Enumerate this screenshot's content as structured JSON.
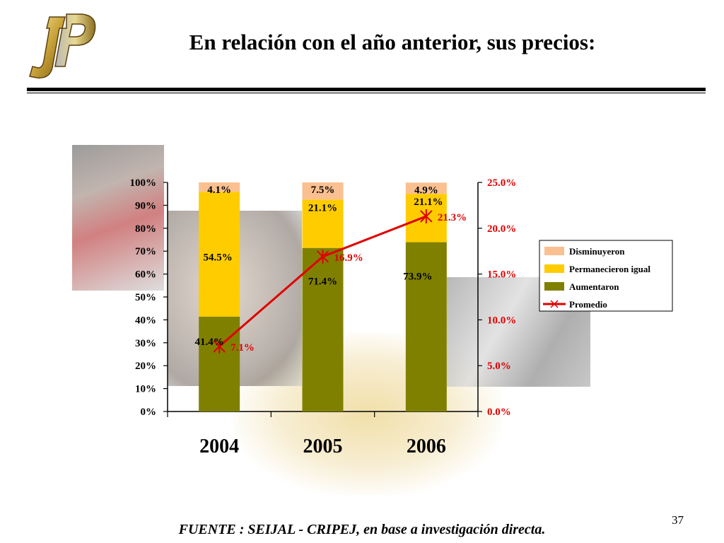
{
  "header": {
    "title": "En relación con el año anterior, sus precios:",
    "logo_icon": "jp-logo-icon"
  },
  "colors": {
    "disminuyeron": "#FAC090",
    "permanecieron": "#FFCC00",
    "aumentaron": "#808000",
    "promedio": "#E00000"
  },
  "chart_data": {
    "type": "bar",
    "stacked": true,
    "categories": [
      "2004",
      "2005",
      "2006"
    ],
    "series": [
      {
        "name": "Aumentaron",
        "values": [
          41.4,
          71.4,
          73.9
        ],
        "labels": [
          "41.4%",
          "71.4%",
          "73.9%"
        ]
      },
      {
        "name": "Permanecieron igual",
        "values": [
          54.5,
          21.1,
          21.1
        ],
        "labels": [
          "54.5%",
          "21.1%",
          "21.1%"
        ]
      },
      {
        "name": "Disminuyeron",
        "values": [
          4.1,
          7.5,
          4.9
        ],
        "labels": [
          "4.1%",
          "7.5%",
          "4.9%"
        ]
      }
    ],
    "line_series": {
      "name": "Promedio",
      "values": [
        7.1,
        16.9,
        21.3
      ],
      "labels": [
        "7.1%",
        "16.9%",
        "21.3%"
      ],
      "axis": "right"
    },
    "ylim": [
      0,
      100
    ],
    "y2lim": [
      0,
      25
    ],
    "yticks": [
      "0%",
      "10%",
      "20%",
      "30%",
      "40%",
      "50%",
      "60%",
      "70%",
      "80%",
      "90%",
      "100%"
    ],
    "y2ticks": [
      "0.0%",
      "5.0%",
      "10.0%",
      "15.0%",
      "20.0%",
      "25.0%"
    ],
    "legend": [
      "Disminuyeron",
      "Permanecieron igual",
      "Aumentaron",
      "Promedio"
    ],
    "legend_position": "right",
    "grid": false
  },
  "footer": {
    "source": "FUENTE :  SEIJAL - CRIPEJ,  en base a investigación directa.",
    "page_number": "37"
  }
}
